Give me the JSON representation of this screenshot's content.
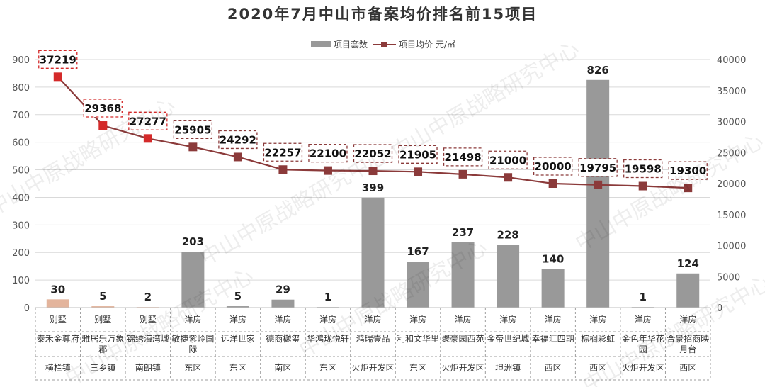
{
  "chart_data": {
    "type": "bar",
    "title": "2020年7月中山市备案均价排名前15项目",
    "legend": [
      {
        "name": "项目套数",
        "color": "#999999"
      },
      {
        "name": "项目均价 元/㎡",
        "color": "#8B3A3A"
      }
    ],
    "categories": [
      "泰禾金尊府",
      "雅居乐万象郡",
      "锦绣海湾城",
      "敏捷紫岭国际",
      "远洋世家",
      "德商樾玺",
      "华鸿珑悦轩",
      "鸿瑞壹品",
      "利和文华里",
      "聚豪园西苑",
      "金帝世纪城",
      "幸福汇四期",
      "棕榈彩虹",
      "金色年华花园",
      "合景招商映月台"
    ],
    "category_lines": [
      [
        "泰禾金尊府"
      ],
      [
        "雅居乐万象",
        "郡"
      ],
      [
        "锦绣海湾城"
      ],
      [
        "敏捷紫岭国",
        "际"
      ],
      [
        "远洋世家"
      ],
      [
        "德商樾玺"
      ],
      [
        "华鸿珑悦轩"
      ],
      [
        "鸿瑞壹品"
      ],
      [
        "利和文华里"
      ],
      [
        "聚豪园西苑"
      ],
      [
        "金帝世纪城"
      ],
      [
        "幸福汇四期"
      ],
      [
        "棕榈彩虹"
      ],
      [
        "金色年华花",
        "园"
      ],
      [
        "合景招商映",
        "月台"
      ]
    ],
    "types": [
      "别墅",
      "别墅",
      "别墅",
      "洋房",
      "洋房",
      "洋房",
      "洋房",
      "洋房",
      "洋房",
      "洋房",
      "洋房",
      "洋房",
      "洋房",
      "洋房",
      "洋房"
    ],
    "districts": [
      "横栏镇",
      "三乡镇",
      "南朗镇",
      "东区",
      "东区",
      "南区",
      "东区",
      "火炬开发区",
      "东区",
      "火炬开发区",
      "坦洲镇",
      "西区",
      "西区",
      "火炬开发区",
      "西区"
    ],
    "series": [
      {
        "name": "项目套数",
        "type": "bar",
        "axis": "left",
        "values": [
          30,
          5,
          2,
          203,
          5,
          29,
          1,
          399,
          167,
          237,
          228,
          140,
          826,
          1,
          124
        ],
        "colors": [
          "#E3B49C",
          "#E3B49C",
          "#E3B49C",
          "#999999",
          "#999999",
          "#999999",
          "#999999",
          "#999999",
          "#999999",
          "#999999",
          "#999999",
          "#999999",
          "#999999",
          "#999999",
          "#999999"
        ]
      },
      {
        "name": "项目均价 元/㎡",
        "type": "line",
        "axis": "right",
        "values": [
          37219,
          29368,
          27277,
          25905,
          24292,
          22257,
          22100,
          22052,
          21905,
          21498,
          21000,
          20000,
          19795,
          19598,
          19300
        ],
        "line_color": "#8B3A3A",
        "marker_colors": [
          "#D42A2A",
          "#D42A2A",
          "#D42A2A",
          "#8B3A3A",
          "#8B3A3A",
          "#8B3A3A",
          "#8B3A3A",
          "#8B3A3A",
          "#8B3A3A",
          "#8B3A3A",
          "#8B3A3A",
          "#8B3A3A",
          "#8B3A3A",
          "#8B3A3A",
          "#8B3A3A"
        ],
        "label_border_colors": [
          "#D42A2A",
          "#D42A2A",
          "#D42A2A",
          "#8B3A3A",
          "#8B3A3A",
          "#8B3A3A",
          "#8B3A3A",
          "#8B3A3A",
          "#8B3A3A",
          "#8B3A3A",
          "#8B3A3A",
          "#8B3A3A",
          "#8B3A3A",
          "#8B3A3A",
          "#8B3A3A"
        ]
      }
    ],
    "left_axis": {
      "min": 0,
      "max": 900,
      "step": 100
    },
    "right_axis": {
      "min": 0,
      "max": 40000,
      "step": 5000
    },
    "grid": true,
    "legend_position": "top-center",
    "watermark": "中山中原战略研究中心"
  }
}
